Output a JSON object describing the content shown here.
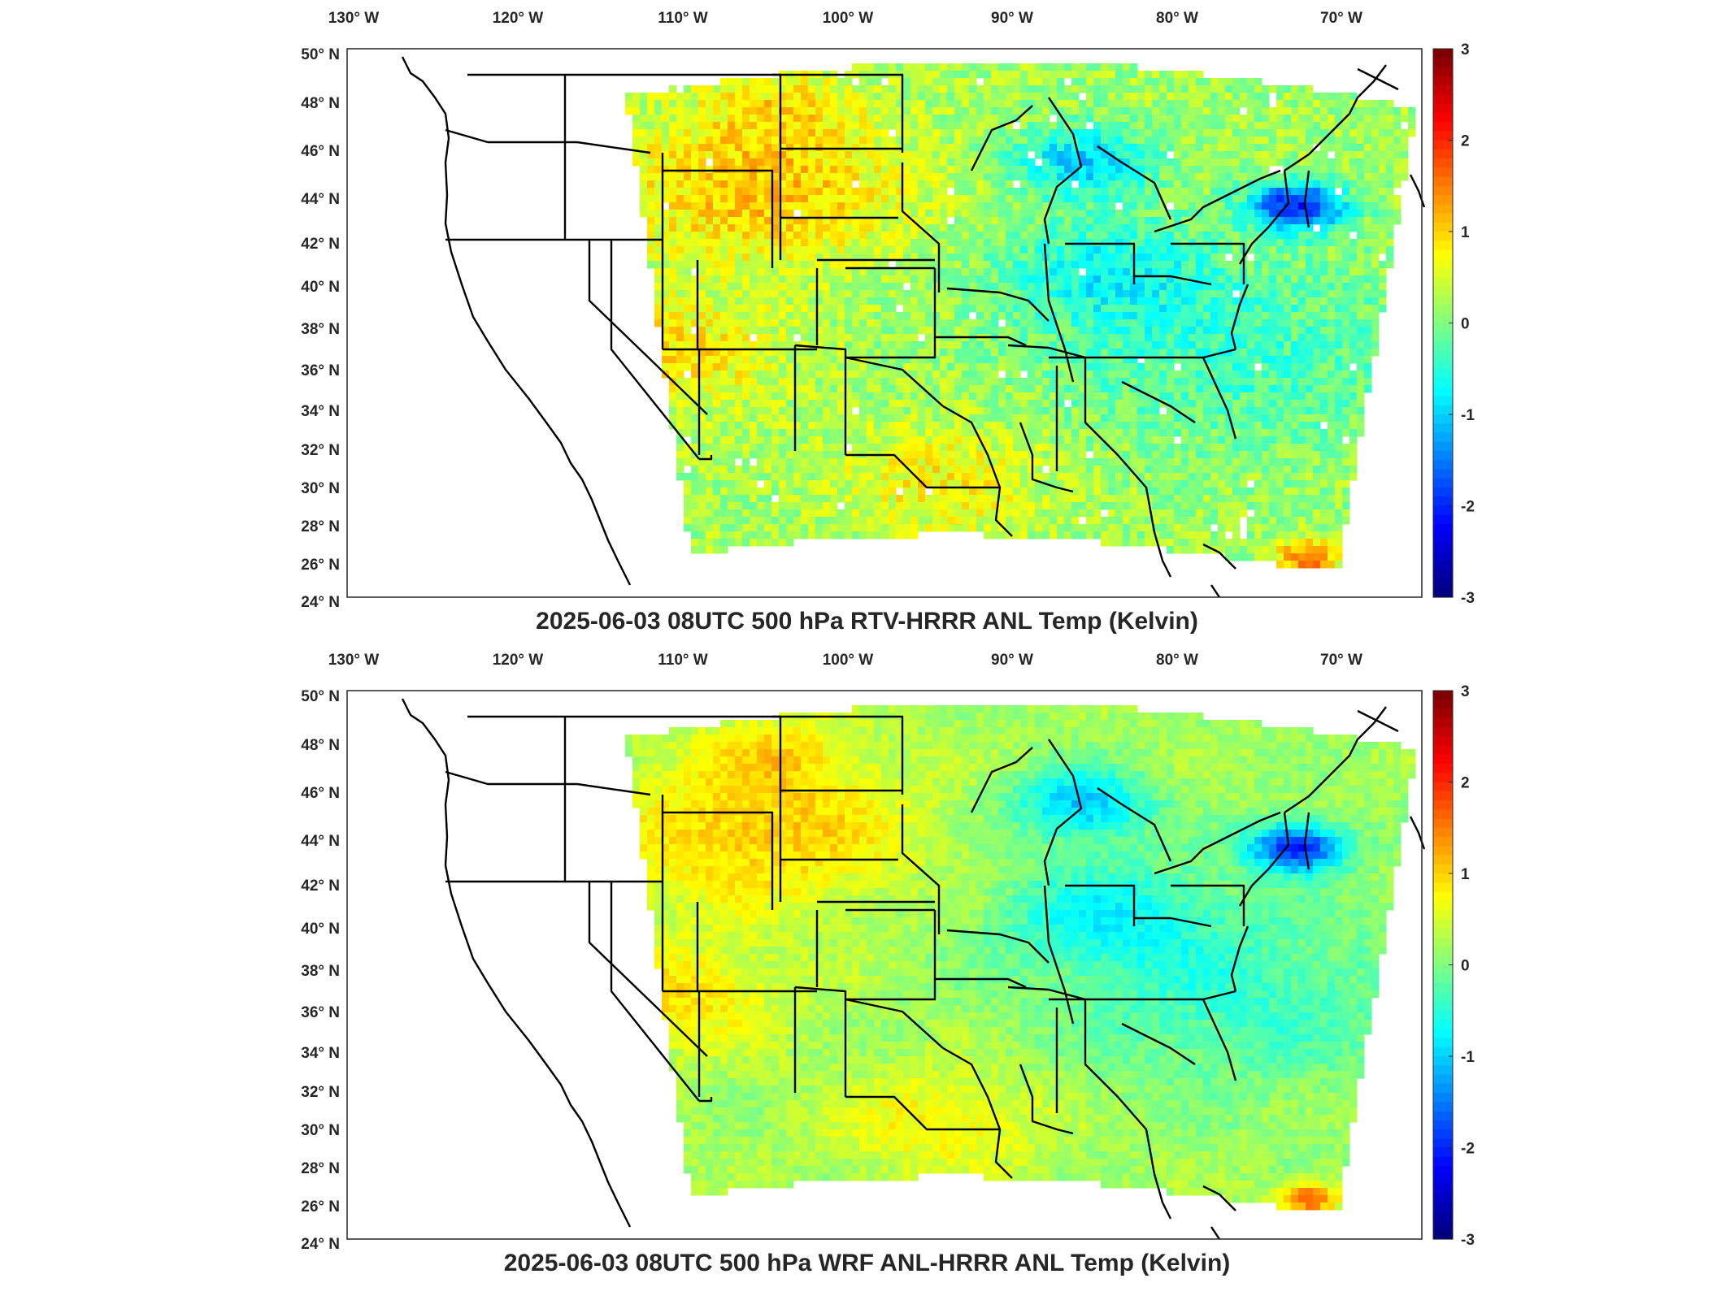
{
  "lon_labels": [
    "130° W",
    "120° W",
    "110° W",
    "100° W",
    "90° W",
    "80° W",
    "70° W"
  ],
  "lat_labels": [
    "50° N",
    "48° N",
    "46° N",
    "44° N",
    "42° N",
    "40° N",
    "38° N",
    "36° N",
    "34° N",
    "32° N",
    "30° N",
    "28° N",
    "26° N",
    "24° N"
  ],
  "colorbar": {
    "min": -3,
    "max": 3,
    "ticks": [
      "3",
      "2",
      "1",
      "0",
      "-1",
      "-2",
      "-3"
    ],
    "colormap": "jet"
  },
  "panels": [
    {
      "title": "2025-06-03 08UTC 500 hPa RTV-HRRR ANL Temp (Kelvin)"
    },
    {
      "title": "2025-06-03 08UTC 500 hPa WRF ANL-HRRR ANL Temp (Kelvin)"
    }
  ],
  "colors": {
    "cold": "#0a1a9e",
    "neutral": "#4fd8c8",
    "warm": "#f2e030",
    "hot": "#e8402a"
  }
}
